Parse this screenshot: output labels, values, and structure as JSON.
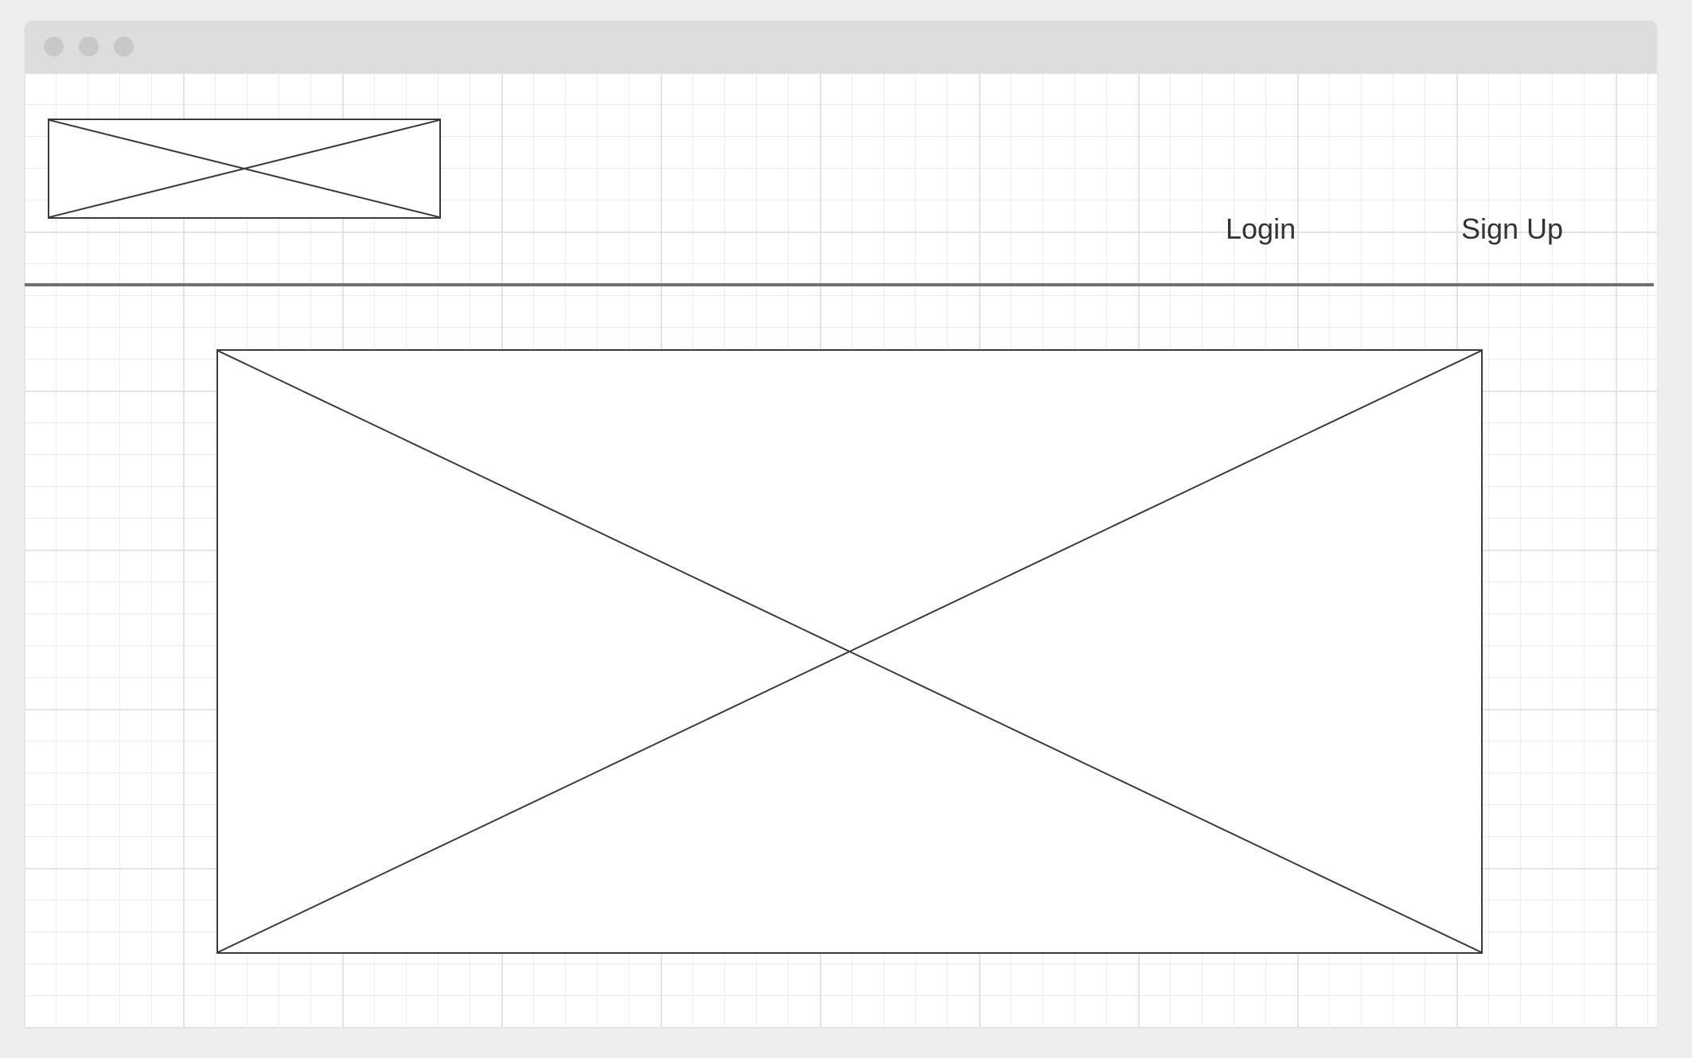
{
  "window": {
    "controls": [
      "close-dot",
      "minimize-dot",
      "maximize-dot"
    ]
  },
  "header": {
    "nav": {
      "login_label": "Login",
      "signup_label": "Sign Up"
    }
  },
  "colors": {
    "page_background": "#eeeeee",
    "titlebar": "#dddddd",
    "window_dot": "#c8c8c8",
    "grid_line": "#e6e6e6",
    "placeholder_stroke": "#3a3a3a",
    "divider": "#707070",
    "text": "#333333"
  }
}
